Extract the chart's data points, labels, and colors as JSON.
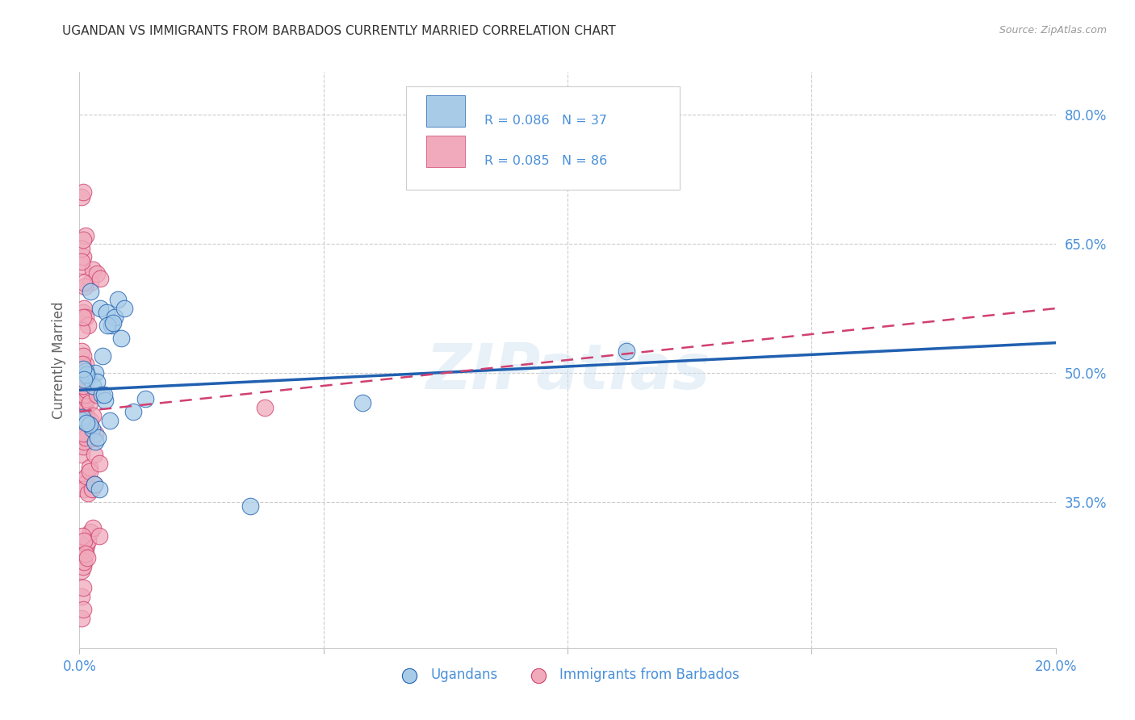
{
  "title": "UGANDAN VS IMMIGRANTS FROM BARBADOS CURRENTLY MARRIED CORRELATION CHART",
  "source": "Source: ZipAtlas.com",
  "ylabel": "Currently Married",
  "legend_label1": "Ugandans",
  "legend_label2": "Immigrants from Barbados",
  "watermark": "ZIPatlas",
  "xlim": [
    0.0,
    20.0
  ],
  "ylim": [
    18.0,
    85.0
  ],
  "blue_color": "#a8cce8",
  "pink_color": "#f0aabb",
  "blue_line_color": "#2060b0",
  "pink_line_color": "#d04070",
  "axis_label_color": "#4a90d9",
  "blue_trend": [
    0.0,
    20.0,
    48.0,
    53.5
  ],
  "pink_trend": [
    0.0,
    20.0,
    45.5,
    57.5
  ],
  "ugandan_x": [
    0.18,
    0.32,
    0.28,
    0.42,
    0.55,
    0.65,
    0.72,
    0.85,
    0.48,
    0.58,
    0.68,
    0.78,
    0.92,
    1.1,
    1.35,
    0.22,
    0.35,
    0.45,
    0.12,
    0.15,
    0.25,
    0.3,
    0.4,
    0.52,
    0.62,
    0.32,
    0.38,
    0.08,
    0.1,
    0.05,
    0.06,
    0.2,
    0.15,
    3.5,
    11.2,
    5.8,
    0.5
  ],
  "ugandan_y": [
    49.5,
    50.0,
    48.5,
    57.5,
    57.0,
    55.5,
    56.5,
    54.0,
    52.0,
    55.5,
    55.8,
    58.5,
    57.5,
    45.5,
    47.0,
    59.5,
    49.0,
    47.5,
    50.2,
    49.8,
    43.5,
    37.0,
    36.5,
    46.8,
    44.5,
    42.0,
    42.5,
    50.5,
    49.2,
    44.5,
    44.8,
    44.0,
    44.2,
    34.5,
    52.5,
    46.5,
    47.5
  ],
  "barbados_x": [
    0.05,
    0.08,
    0.1,
    0.05,
    0.08,
    0.12,
    0.15,
    0.06,
    0.09,
    0.11,
    0.14,
    0.05,
    0.07,
    0.1,
    0.13,
    0.16,
    0.05,
    0.07,
    0.09,
    0.12,
    0.06,
    0.09,
    0.14,
    0.18,
    0.22,
    0.27,
    0.32,
    0.05,
    0.07,
    0.1,
    0.15,
    0.2,
    0.05,
    0.08,
    0.12,
    0.05,
    0.07,
    0.1,
    0.13,
    0.17,
    0.22,
    0.28,
    0.35,
    0.42,
    0.05,
    0.08,
    0.11,
    0.05,
    0.07,
    0.1,
    0.05,
    0.07,
    0.05,
    0.08,
    0.06,
    0.05,
    0.08,
    0.1,
    0.12,
    0.15,
    0.18,
    0.22,
    0.28,
    0.05,
    0.08,
    0.05,
    0.07,
    0.06,
    0.09,
    0.12,
    0.16,
    0.21,
    0.3,
    0.4,
    0.2,
    0.28,
    0.35,
    0.18,
    0.25,
    0.3,
    3.8,
    0.4,
    0.12,
    0.08,
    0.1,
    0.07
  ],
  "barbados_y": [
    44.0,
    44.5,
    45.5,
    43.0,
    46.0,
    46.5,
    47.0,
    42.5,
    43.5,
    44.5,
    45.0,
    40.5,
    41.5,
    42.0,
    43.0,
    47.5,
    49.0,
    50.0,
    50.5,
    51.0,
    48.5,
    47.5,
    48.0,
    49.5,
    44.5,
    42.5,
    43.0,
    37.5,
    37.0,
    36.5,
    38.0,
    39.0,
    62.5,
    63.5,
    66.0,
    64.5,
    57.0,
    57.5,
    56.5,
    55.5,
    60.5,
    62.0,
    61.5,
    61.0,
    63.0,
    65.5,
    60.0,
    55.0,
    56.5,
    60.5,
    70.5,
    71.0,
    52.5,
    52.0,
    51.0,
    27.0,
    27.5,
    28.0,
    29.5,
    30.0,
    30.5,
    31.5,
    32.0,
    24.0,
    25.0,
    21.5,
    22.5,
    31.0,
    30.5,
    29.0,
    28.5,
    38.5,
    40.5,
    39.5,
    46.5,
    45.0,
    47.5,
    36.0,
    36.5,
    37.0,
    46.0,
    31.0,
    42.5,
    43.0,
    44.5,
    48.5
  ]
}
